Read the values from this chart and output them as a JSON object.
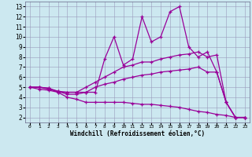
{
  "bg_color": "#cce8f0",
  "grid_color": "#9999bb",
  "line_color": "#990099",
  "xlabel": "Windchill (Refroidissement éolien,°C)",
  "xlim": [
    -0.5,
    23.5
  ],
  "ylim": [
    1.5,
    13.5
  ],
  "xticks": [
    0,
    1,
    2,
    3,
    4,
    5,
    6,
    7,
    8,
    9,
    10,
    11,
    12,
    13,
    14,
    15,
    16,
    17,
    18,
    19,
    20,
    21,
    22,
    23
  ],
  "yticks": [
    2,
    3,
    4,
    5,
    6,
    7,
    8,
    9,
    10,
    11,
    12,
    13
  ],
  "lines": [
    {
      "x": [
        0,
        1,
        2,
        3,
        4,
        5,
        6,
        7,
        8,
        9,
        10,
        11,
        12,
        13,
        14,
        15,
        16,
        17,
        18,
        19,
        20,
        21,
        22,
        23
      ],
      "y": [
        5.0,
        5.0,
        4.9,
        4.5,
        4.5,
        4.5,
        4.5,
        4.5,
        7.8,
        10.0,
        7.2,
        7.8,
        12.0,
        9.5,
        10.0,
        12.5,
        13.0,
        9.0,
        8.0,
        8.5,
        6.5,
        3.5,
        2.0,
        2.0
      ]
    },
    {
      "x": [
        0,
        1,
        2,
        3,
        4,
        5,
        6,
        7,
        8,
        9,
        10,
        11,
        12,
        13,
        14,
        15,
        16,
        17,
        18,
        19,
        20,
        21,
        22,
        23
      ],
      "y": [
        5.0,
        5.0,
        4.9,
        4.6,
        4.5,
        4.5,
        5.0,
        5.5,
        6.0,
        6.5,
        7.0,
        7.2,
        7.5,
        7.5,
        7.8,
        8.0,
        8.2,
        8.3,
        8.5,
        8.0,
        8.2,
        3.5,
        2.0,
        2.0
      ]
    },
    {
      "x": [
        0,
        1,
        2,
        3,
        4,
        5,
        6,
        7,
        8,
        9,
        10,
        11,
        12,
        13,
        14,
        15,
        16,
        17,
        18,
        19,
        20,
        21,
        22,
        23
      ],
      "y": [
        5.0,
        5.0,
        4.8,
        4.6,
        4.3,
        4.3,
        4.5,
        5.0,
        5.3,
        5.5,
        5.8,
        6.0,
        6.2,
        6.3,
        6.5,
        6.6,
        6.7,
        6.8,
        7.0,
        6.5,
        6.5,
        3.5,
        2.0,
        2.0
      ]
    },
    {
      "x": [
        0,
        1,
        2,
        3,
        4,
        5,
        6,
        7,
        8,
        9,
        10,
        11,
        12,
        13,
        14,
        15,
        16,
        17,
        18,
        19,
        20,
        21,
        22,
        23
      ],
      "y": [
        5.0,
        4.8,
        4.7,
        4.5,
        4.0,
        3.8,
        3.5,
        3.5,
        3.5,
        3.5,
        3.5,
        3.4,
        3.3,
        3.3,
        3.2,
        3.1,
        3.0,
        2.8,
        2.6,
        2.5,
        2.3,
        2.2,
        2.0,
        2.0
      ]
    }
  ]
}
